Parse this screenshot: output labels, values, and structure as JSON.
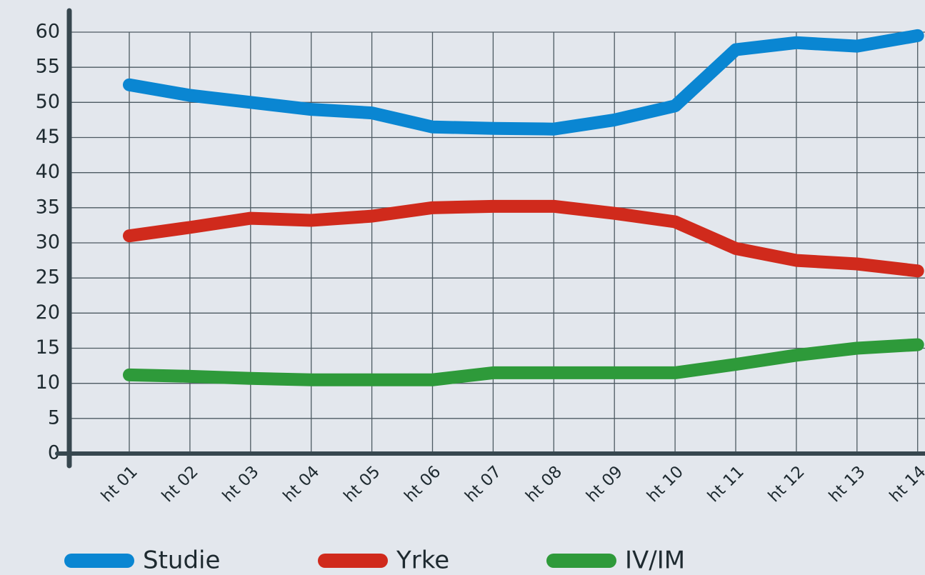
{
  "chart_data": {
    "type": "line",
    "categories": [
      "ht 01",
      "ht 02",
      "ht 03",
      "ht 04",
      "ht 05",
      "ht 06",
      "ht 07",
      "ht 08",
      "ht 09",
      "ht 10",
      "ht 11",
      "ht 12",
      "ht 13",
      "ht 14"
    ],
    "series": [
      {
        "name": "Studie",
        "color": "#0a86d2",
        "values": [
          52.5,
          51,
          50,
          49,
          48.5,
          46.5,
          46.3,
          46.2,
          47.5,
          49.5,
          57.5,
          58.5,
          58,
          59.5
        ]
      },
      {
        "name": "Yrke",
        "color": "#d02a1c",
        "values": [
          31,
          32.2,
          33.5,
          33.2,
          33.8,
          35,
          35.2,
          35.2,
          34.2,
          33,
          29.2,
          27.5,
          27,
          26
        ]
      },
      {
        "name": "IV/IM",
        "color": "#2e9a3a",
        "values": [
          11.2,
          11,
          10.7,
          10.5,
          10.5,
          10.5,
          11.5,
          11.5,
          11.5,
          11.5,
          12.7,
          14,
          15,
          15.5
        ]
      }
    ],
    "ylim": [
      0,
      60
    ],
    "yticks": [
      0,
      5,
      10,
      15,
      20,
      25,
      30,
      35,
      40,
      45,
      50,
      55,
      60
    ],
    "grid": true
  }
}
